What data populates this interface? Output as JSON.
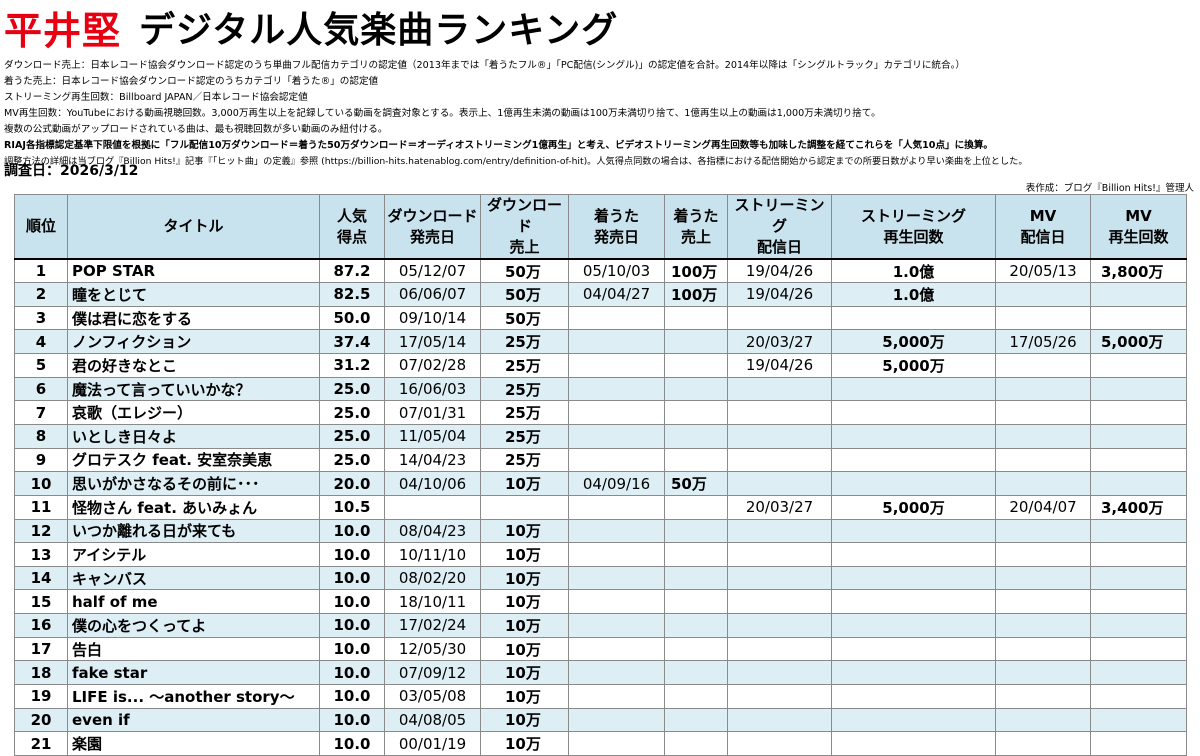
{
  "header": {
    "artist": "平井堅",
    "title": "デジタル人気楽曲ランキング"
  },
  "notes": [
    "ダウンロード売上：日本レコード協会ダウンロード認定のうち単曲フル配信カテゴリの認定値（2013年までは「着うたフル®」「PC配信(シングル)」の認定値を合計。2014年以降は「シングルトラック」カテゴリに統合。）",
    "着うた売上：日本レコード協会ダウンロード認定のうちカテゴリ「着うた®」の認定値",
    "ストリーミング再生回数：Billboard JAPAN／日本レコード協会認定値",
    "MV再生回数：YouTubeにおける動画視聴回数。3,000万再生以上を記録している動画を調査対象とする。表示上、1億再生未満の動画は100万未満切り捨て、1億再生以上の動画は1,000万未満切り捨て。",
    "複数の公式動画がアップロードされている曲は、最も視聴回数が多い動画のみ紐付ける。",
    "RIAJ各指標認定基準下限値を根拠に「フル配信10万ダウンロード＝着うた50万ダウンロード＝オーディオストリーミング1億再生」と考え、ビデオストリーミング再生回数等も加味した調整を経てこれらを「人気10点」に換算。",
    "調整方法の詳細は当ブログ『Billion Hits!』記事『「ヒット曲」の定義』参照 (https://billion-hits.hatenablog.com/entry/definition-of-hit)。人気得点同数の場合は、各指標における配信開始から認定までの所要日数がより早い楽曲を上位とした。"
  ],
  "survey_date": "調査日：2026/3/12",
  "credit": "表作成：ブログ『Billion Hits!』管理人",
  "columns": [
    {
      "l1": "順位",
      "l2": ""
    },
    {
      "l1": "タイトル",
      "l2": ""
    },
    {
      "l1": "人気",
      "l2": "得点"
    },
    {
      "l1": "ダウンロード",
      "l2": "発売日"
    },
    {
      "l1": "ダウンロード",
      "l2": "売上"
    },
    {
      "l1": "着うた",
      "l2": "発売日"
    },
    {
      "l1": "着うた",
      "l2": "売上"
    },
    {
      "l1": "ストリーミング",
      "l2": "配信日"
    },
    {
      "l1": "ストリーミング",
      "l2": "再生回数"
    },
    {
      "l1": "MV",
      "l2": "配信日"
    },
    {
      "l1": "MV",
      "l2": "再生回数"
    }
  ],
  "rows": [
    {
      "rank": "1",
      "title": "POP STAR",
      "score": "87.2",
      "dl_date": "05/12/07",
      "dl_sales": "50万",
      "ch_date": "05/10/03",
      "ch_sales": "100万",
      "st_date": "19/04/26",
      "st_plays": "1.0億",
      "mv_date": "20/05/13",
      "mv_plays": "3,800万"
    },
    {
      "rank": "2",
      "title": "瞳をとじて",
      "score": "82.5",
      "dl_date": "06/06/07",
      "dl_sales": "50万",
      "ch_date": "04/04/27",
      "ch_sales": "100万",
      "st_date": "19/04/26",
      "st_plays": "1.0億",
      "mv_date": "",
      "mv_plays": ""
    },
    {
      "rank": "3",
      "title": "僕は君に恋をする",
      "score": "50.0",
      "dl_date": "09/10/14",
      "dl_sales": "50万",
      "ch_date": "",
      "ch_sales": "",
      "st_date": "",
      "st_plays": "",
      "mv_date": "",
      "mv_plays": ""
    },
    {
      "rank": "4",
      "title": "ノンフィクション",
      "score": "37.4",
      "dl_date": "17/05/14",
      "dl_sales": "25万",
      "ch_date": "",
      "ch_sales": "",
      "st_date": "20/03/27",
      "st_plays": "5,000万",
      "mv_date": "17/05/26",
      "mv_plays": "5,000万"
    },
    {
      "rank": "5",
      "title": "君の好きなとこ",
      "score": "31.2",
      "dl_date": "07/02/28",
      "dl_sales": "25万",
      "ch_date": "",
      "ch_sales": "",
      "st_date": "19/04/26",
      "st_plays": "5,000万",
      "mv_date": "",
      "mv_plays": ""
    },
    {
      "rank": "6",
      "title": "魔法って言っていいかな？",
      "score": "25.0",
      "dl_date": "16/06/03",
      "dl_sales": "25万",
      "ch_date": "",
      "ch_sales": "",
      "st_date": "",
      "st_plays": "",
      "mv_date": "",
      "mv_plays": ""
    },
    {
      "rank": "7",
      "title": "哀歌（エレジー）",
      "score": "25.0",
      "dl_date": "07/01/31",
      "dl_sales": "25万",
      "ch_date": "",
      "ch_sales": "",
      "st_date": "",
      "st_plays": "",
      "mv_date": "",
      "mv_plays": ""
    },
    {
      "rank": "8",
      "title": "いとしき日々よ",
      "score": "25.0",
      "dl_date": "11/05/04",
      "dl_sales": "25万",
      "ch_date": "",
      "ch_sales": "",
      "st_date": "",
      "st_plays": "",
      "mv_date": "",
      "mv_plays": ""
    },
    {
      "rank": "9",
      "title": "グロテスク feat. 安室奈美恵",
      "score": "25.0",
      "dl_date": "14/04/23",
      "dl_sales": "25万",
      "ch_date": "",
      "ch_sales": "",
      "st_date": "",
      "st_plays": "",
      "mv_date": "",
      "mv_plays": ""
    },
    {
      "rank": "10",
      "title": "思いがかさなるその前に･･･",
      "score": "20.0",
      "dl_date": "04/10/06",
      "dl_sales": "10万",
      "ch_date": "04/09/16",
      "ch_sales": "50万",
      "st_date": "",
      "st_plays": "",
      "mv_date": "",
      "mv_plays": ""
    },
    {
      "rank": "11",
      "title": "怪物さん feat. あいみょん",
      "score": "10.5",
      "dl_date": "",
      "dl_sales": "",
      "ch_date": "",
      "ch_sales": "",
      "st_date": "20/03/27",
      "st_plays": "5,000万",
      "mv_date": "20/04/07",
      "mv_plays": "3,400万"
    },
    {
      "rank": "12",
      "title": "いつか離れる日が来ても",
      "score": "10.0",
      "dl_date": "08/04/23",
      "dl_sales": "10万",
      "ch_date": "",
      "ch_sales": "",
      "st_date": "",
      "st_plays": "",
      "mv_date": "",
      "mv_plays": ""
    },
    {
      "rank": "13",
      "title": "アイシテル",
      "score": "10.0",
      "dl_date": "10/11/10",
      "dl_sales": "10万",
      "ch_date": "",
      "ch_sales": "",
      "st_date": "",
      "st_plays": "",
      "mv_date": "",
      "mv_plays": ""
    },
    {
      "rank": "14",
      "title": "キャンバス",
      "score": "10.0",
      "dl_date": "08/02/20",
      "dl_sales": "10万",
      "ch_date": "",
      "ch_sales": "",
      "st_date": "",
      "st_plays": "",
      "mv_date": "",
      "mv_plays": ""
    },
    {
      "rank": "15",
      "title": "half of me",
      "score": "10.0",
      "dl_date": "18/10/11",
      "dl_sales": "10万",
      "ch_date": "",
      "ch_sales": "",
      "st_date": "",
      "st_plays": "",
      "mv_date": "",
      "mv_plays": ""
    },
    {
      "rank": "16",
      "title": "僕の心をつくってよ",
      "score": "10.0",
      "dl_date": "17/02/24",
      "dl_sales": "10万",
      "ch_date": "",
      "ch_sales": "",
      "st_date": "",
      "st_plays": "",
      "mv_date": "",
      "mv_plays": ""
    },
    {
      "rank": "17",
      "title": "告白",
      "score": "10.0",
      "dl_date": "12/05/30",
      "dl_sales": "10万",
      "ch_date": "",
      "ch_sales": "",
      "st_date": "",
      "st_plays": "",
      "mv_date": "",
      "mv_plays": ""
    },
    {
      "rank": "18",
      "title": "fake star",
      "score": "10.0",
      "dl_date": "07/09/12",
      "dl_sales": "10万",
      "ch_date": "",
      "ch_sales": "",
      "st_date": "",
      "st_plays": "",
      "mv_date": "",
      "mv_plays": ""
    },
    {
      "rank": "19",
      "title": "LIFE is... ～another story～",
      "score": "10.0",
      "dl_date": "03/05/08",
      "dl_sales": "10万",
      "ch_date": "",
      "ch_sales": "",
      "st_date": "",
      "st_plays": "",
      "mv_date": "",
      "mv_plays": ""
    },
    {
      "rank": "20",
      "title": "even if",
      "score": "10.0",
      "dl_date": "04/08/05",
      "dl_sales": "10万",
      "ch_date": "",
      "ch_sales": "",
      "st_date": "",
      "st_plays": "",
      "mv_date": "",
      "mv_plays": ""
    },
    {
      "rank": "21",
      "title": "楽園",
      "score": "10.0",
      "dl_date": "00/01/19",
      "dl_sales": "10万",
      "ch_date": "",
      "ch_sales": "",
      "st_date": "",
      "st_plays": "",
      "mv_date": "",
      "mv_plays": ""
    }
  ]
}
